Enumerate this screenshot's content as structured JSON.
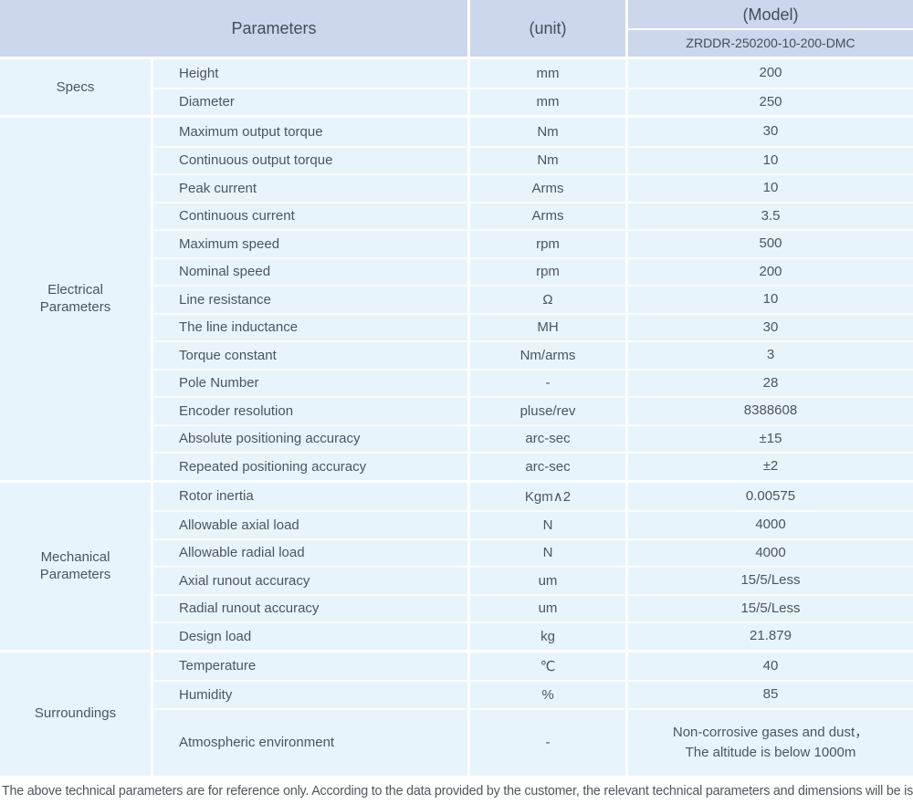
{
  "table": {
    "header": {
      "parameters": "Parameters",
      "unit": "(unit)",
      "model": "(Model)",
      "model_value": "ZRDDR-250200-10-200-DMC"
    },
    "sections": [
      {
        "label": "Specs",
        "rows": [
          {
            "name": "Height",
            "unit": "mm",
            "value": "200"
          },
          {
            "name": "Diameter",
            "unit": "mm",
            "value": "250"
          }
        ]
      },
      {
        "label": "Electrical\nParameters",
        "rows": [
          {
            "name": "Maximum output torque",
            "unit": "Nm",
            "value": "30"
          },
          {
            "name": "Continuous output torque",
            "unit": "Nm",
            "value": "10"
          },
          {
            "name": "Peak current",
            "unit": "Arms",
            "value": "10"
          },
          {
            "name": "Continuous current",
            "unit": "Arms",
            "value": "3.5"
          },
          {
            "name": "Maximum speed",
            "unit": "rpm",
            "value": "500"
          },
          {
            "name": "Nominal speed",
            "unit": "rpm",
            "value": "200"
          },
          {
            "name": "Line resistance",
            "unit": "Ω",
            "value": "10"
          },
          {
            "name": "The line inductance",
            "unit": "MH",
            "value": "30"
          },
          {
            "name": "Torque constant",
            "unit": "Nm/arms",
            "value": "3"
          },
          {
            "name": "Pole Number",
            "unit": "-",
            "value": "28"
          },
          {
            "name": "Encoder resolution",
            "unit": "pluse/rev",
            "value": "8388608"
          },
          {
            "name": "Absolute positioning accuracy",
            "unit": "arc-sec",
            "value": "±15"
          },
          {
            "name": "Repeated positioning accuracy",
            "unit": "arc-sec",
            "value": "±2"
          }
        ]
      },
      {
        "label": "Mechanical\nParameters",
        "rows": [
          {
            "name": "Rotor inertia",
            "unit": "Kgm∧2",
            "value": "0.00575"
          },
          {
            "name": "Allowable axial load",
            "unit": "N",
            "value": "4000"
          },
          {
            "name": "Allowable radial load",
            "unit": "N",
            "value": "4000"
          },
          {
            "name": "Axial runout accuracy",
            "unit": "um",
            "value": "15/5/Less"
          },
          {
            "name": "Radial runout accuracy",
            "unit": "um",
            "value": "15/5/Less"
          },
          {
            "name": "Design load",
            "unit": "kg",
            "value": "21.879"
          }
        ]
      },
      {
        "label": "Surroundings",
        "rows": [
          {
            "name": "Temperature",
            "unit": "℃",
            "value": "40"
          },
          {
            "name": "Humidity",
            "unit": "%",
            "value": "85"
          },
          {
            "name": "Atmospheric environment",
            "unit": "-",
            "value": "Non-corrosive gases and dust，\nThe altitude is below 1000m"
          }
        ]
      }
    ]
  },
  "footer": {
    "note": "The above technical parameters are for reference only. According to the data provided by the customer, the relevant technical parameters and dimensions will be issued."
  },
  "colors": {
    "header_bg": "#ccd6ec",
    "row_bg": "#e8f4fb",
    "divider": "#ffffff",
    "text": "#4b5560"
  }
}
